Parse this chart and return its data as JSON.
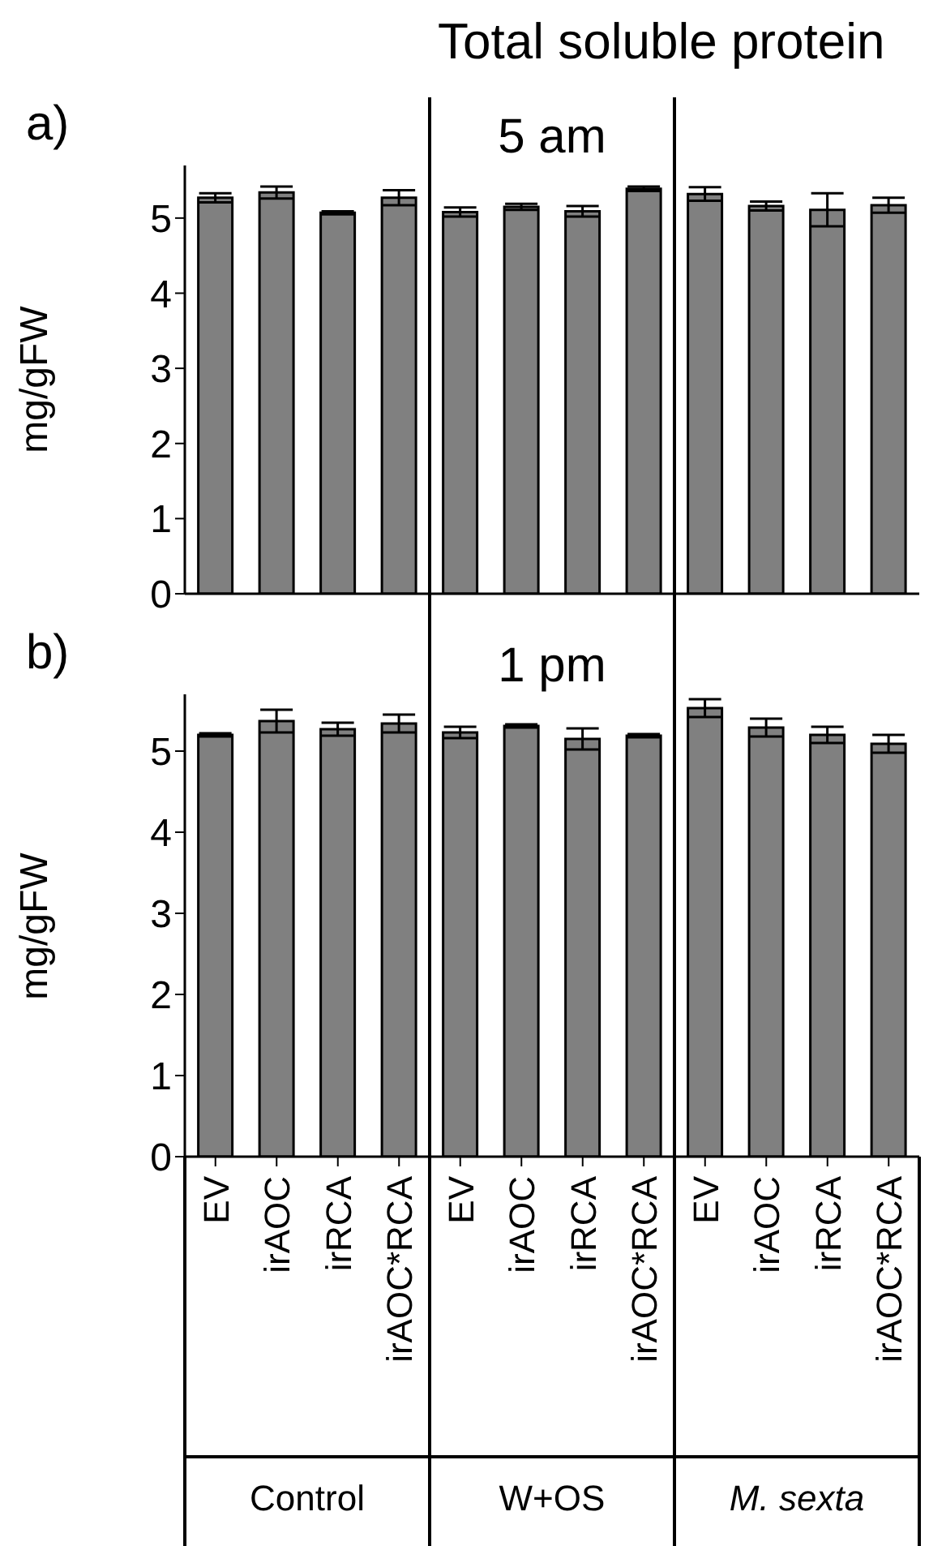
{
  "chart_data": [
    {
      "type": "bar",
      "title": "Total soluble protein",
      "subtitle": "5 am",
      "ylabel": "mg/gFW",
      "annotations": [
        "a)"
      ],
      "categories": [
        null,
        null,
        null,
        null,
        null,
        null,
        null,
        null,
        null,
        null,
        null,
        null
      ],
      "values": [
        5.27,
        5.34,
        5.07,
        5.27,
        5.08,
        5.15,
        5.09,
        5.39,
        5.32,
        5.16,
        5.11,
        5.17
      ],
      "errors": [
        0.06,
        0.08,
        0.02,
        0.1,
        0.06,
        0.04,
        0.07,
        0.03,
        0.09,
        0.06,
        0.22,
        0.1
      ],
      "color": "#808080",
      "ylim": [
        0,
        5.7
      ],
      "yticks": [
        0,
        1,
        2,
        3,
        4,
        5
      ],
      "grid": false,
      "tick_labels": "y"
    },
    {
      "type": "bar",
      "subtitle": "1 pm",
      "ylabel": "mg/gFW",
      "annotations": [
        "b)",
        "Control",
        "W+OS",
        "M. sexta"
      ],
      "categories": [
        "EV",
        "irAOC",
        "irRCA",
        "irAOC*RCA",
        "EV",
        "irAOC",
        "irRCA",
        "irAOC*RCA",
        "EV",
        "irAOC",
        "irRCA",
        "irAOC*RCA"
      ],
      "values": [
        5.2,
        5.37,
        5.27,
        5.34,
        5.23,
        5.31,
        5.15,
        5.19,
        5.53,
        5.29,
        5.2,
        5.09
      ],
      "errors": [
        0.02,
        0.14,
        0.08,
        0.11,
        0.07,
        0.02,
        0.13,
        0.02,
        0.11,
        0.11,
        0.1,
        0.11
      ],
      "color": "#808080",
      "ylim": [
        0,
        5.7
      ],
      "yticks": [
        0,
        1,
        2,
        3,
        4,
        5
      ],
      "grid": false
    }
  ]
}
